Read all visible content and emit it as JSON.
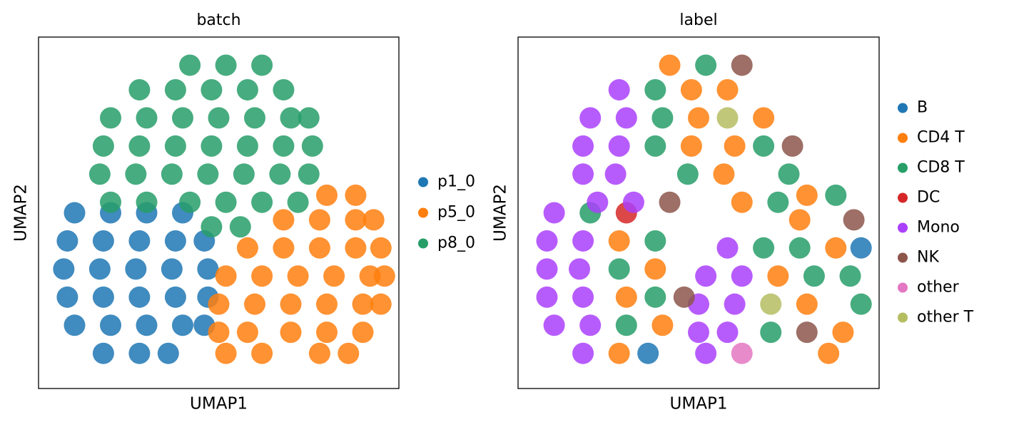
{
  "chart_data": [
    {
      "type": "scatter",
      "title": "batch",
      "x_label": "UMAP1",
      "y_label": "UMAP2",
      "xlim": [
        0,
        100
      ],
      "ylim": [
        0,
        100
      ],
      "series": [
        {
          "name": "p1_0",
          "color": "#1f77b4",
          "x": [
            10,
            20,
            30,
            40,
            8,
            18,
            28,
            38,
            46,
            7,
            17,
            27,
            37,
            47,
            8,
            18,
            28,
            38,
            47,
            10,
            20,
            30,
            40,
            46,
            18,
            28,
            36
          ],
          "values": [
            50,
            50,
            50,
            50,
            42,
            42,
            42,
            42,
            42,
            34,
            34,
            34,
            34,
            34,
            26,
            26,
            26,
            26,
            26,
            18,
            18,
            18,
            18,
            18,
            10,
            10,
            10
          ]
        },
        {
          "name": "p5_0",
          "color": "#ff7f0e",
          "x": [
            80,
            88,
            68,
            78,
            88,
            93,
            58,
            68,
            78,
            88,
            95,
            52,
            62,
            72,
            82,
            92,
            96,
            50,
            60,
            70,
            80,
            90,
            95,
            50,
            58,
            70,
            80,
            90,
            52,
            62,
            78,
            86
          ],
          "values": [
            55,
            55,
            48,
            48,
            48,
            48,
            40,
            40,
            40,
            40,
            40,
            32,
            32,
            32,
            32,
            32,
            32,
            24,
            24,
            24,
            24,
            24,
            24,
            16,
            16,
            16,
            16,
            16,
            10,
            10,
            10,
            10
          ]
        },
        {
          "name": "p8_0",
          "color": "#279e68",
          "x": [
            42,
            52,
            62,
            28,
            38,
            48,
            58,
            68,
            20,
            30,
            40,
            50,
            60,
            70,
            75,
            18,
            28,
            38,
            48,
            58,
            68,
            76,
            17,
            27,
            37,
            47,
            57,
            67,
            75,
            20,
            30,
            42,
            52,
            62,
            72,
            48,
            56
          ],
          "values": [
            92,
            92,
            92,
            85,
            85,
            85,
            85,
            85,
            77,
            77,
            77,
            77,
            77,
            77,
            77,
            69,
            69,
            69,
            69,
            69,
            69,
            69,
            61,
            61,
            61,
            61,
            61,
            61,
            61,
            53,
            53,
            53,
            53,
            53,
            53,
            46,
            46
          ]
        }
      ]
    },
    {
      "type": "scatter",
      "title": "label",
      "x_label": "UMAP1",
      "y_label": "UMAP2",
      "xlim": [
        0,
        100
      ],
      "ylim": [
        0,
        100
      ],
      "series": [
        {
          "name": "B",
          "color": "#1f77b4",
          "x": [
            36,
            95
          ],
          "values": [
            10,
            40
          ]
        },
        {
          "name": "CD4 T",
          "color": "#ff7f0e",
          "x": [
            42,
            48,
            50,
            48,
            57,
            62,
            68,
            58,
            60,
            28,
            38,
            30,
            40,
            28,
            78,
            72,
            80,
            88,
            90,
            86,
            80
          ],
          "values": [
            92,
            85,
            77,
            69,
            61,
            53,
            77,
            85,
            69,
            42,
            34,
            26,
            18,
            10,
            48,
            32,
            24,
            40,
            16,
            10,
            55
          ]
        },
        {
          "name": "CD8 T",
          "color": "#279e68",
          "x": [
            40,
            38,
            47,
            52,
            68,
            72,
            38,
            75,
            28,
            38,
            38,
            30,
            20,
            68,
            78,
            82,
            70,
            92,
            88,
            95
          ],
          "values": [
            77,
            69,
            61,
            92,
            69,
            53,
            85,
            61,
            34,
            26,
            42,
            18,
            50,
            40,
            40,
            32,
            16,
            32,
            55,
            24
          ]
        },
        {
          "name": "DC",
          "color": "#d62728",
          "x": [
            30
          ],
          "values": [
            50
          ]
        },
        {
          "name": "Mono",
          "color": "#aa40fc",
          "x": [
            18,
            20,
            28,
            18,
            28,
            27,
            30,
            22,
            32,
            8,
            8,
            8,
            10,
            10,
            18,
            17,
            18,
            20,
            18,
            52,
            50,
            50,
            52,
            58,
            60,
            58,
            62
          ],
          "values": [
            69,
            77,
            85,
            61,
            69,
            61,
            77,
            53,
            53,
            42,
            34,
            26,
            18,
            50,
            42,
            34,
            26,
            18,
            10,
            32,
            24,
            16,
            10,
            40,
            24,
            16,
            32
          ]
        },
        {
          "name": "NK",
          "color": "#8c564b",
          "x": [
            62,
            76,
            46,
            93,
            80,
            42
          ],
          "values": [
            92,
            69,
            26,
            48,
            16,
            53
          ]
        },
        {
          "name": "other",
          "color": "#e377c2",
          "x": [
            62
          ],
          "values": [
            10
          ]
        },
        {
          "name": "other T",
          "color": "#b5bd61",
          "x": [
            70,
            58
          ],
          "values": [
            24,
            77
          ]
        }
      ]
    }
  ]
}
